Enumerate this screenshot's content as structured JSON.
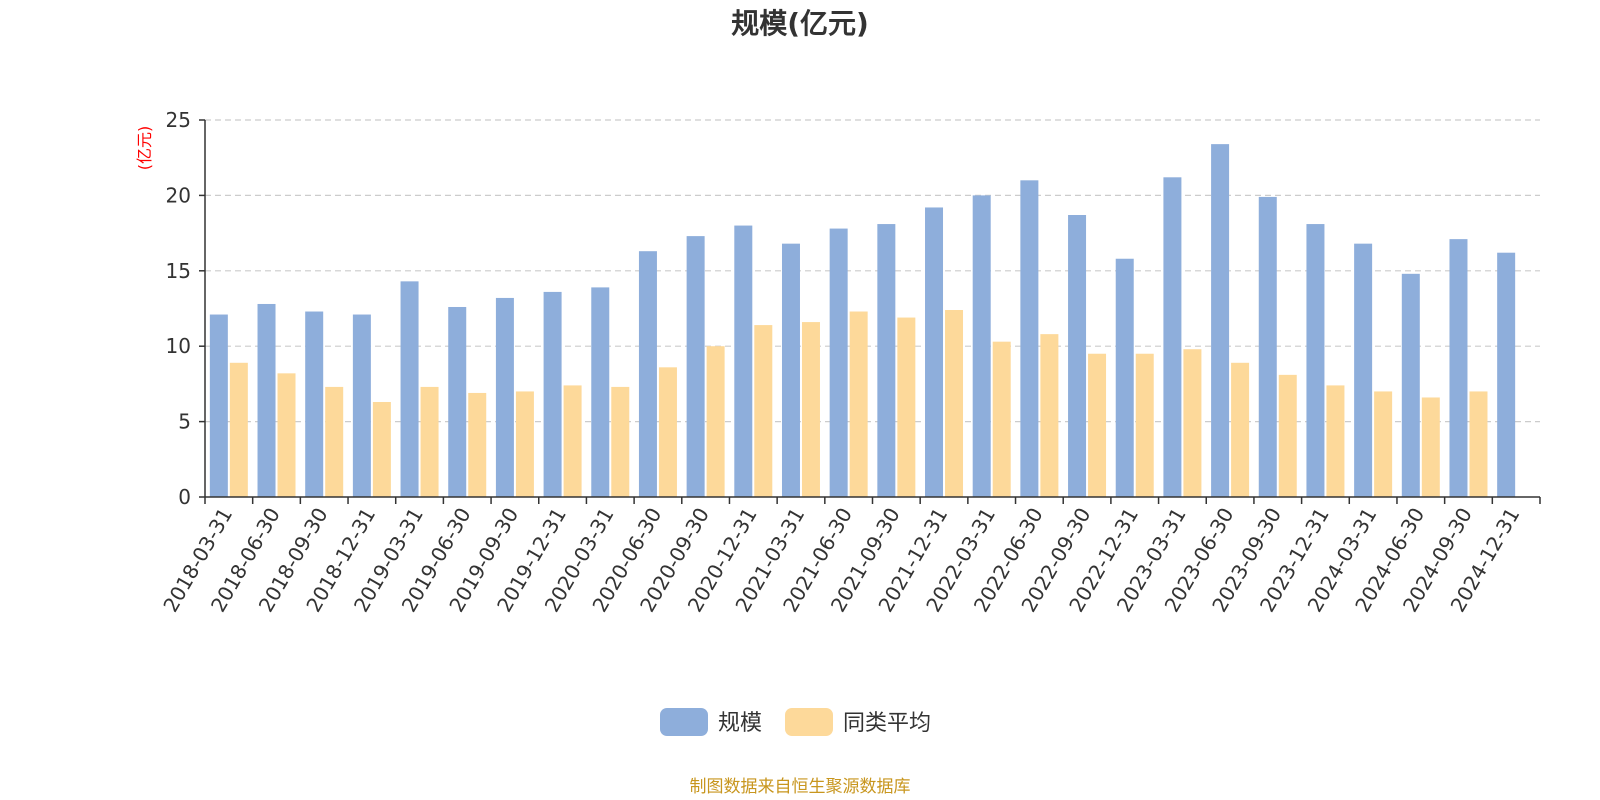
{
  "chart_data": {
    "type": "bar",
    "title": "规模(亿元)",
    "ylabel": "(亿元)",
    "xlabel": "",
    "ylim": [
      0,
      25
    ],
    "yticks": [
      0,
      5,
      10,
      15,
      20,
      25
    ],
    "grid": true,
    "legend_position": "bottom-center",
    "categories": [
      "2018-03-31",
      "2018-06-30",
      "2018-09-30",
      "2018-12-31",
      "2019-03-31",
      "2019-06-30",
      "2019-09-30",
      "2019-12-31",
      "2020-03-31",
      "2020-06-30",
      "2020-09-30",
      "2020-12-31",
      "2021-03-31",
      "2021-06-30",
      "2021-09-30",
      "2021-12-31",
      "2022-03-31",
      "2022-06-30",
      "2022-09-30",
      "2022-12-31",
      "2023-03-31",
      "2023-06-30",
      "2023-09-30",
      "2023-12-31",
      "2024-03-31",
      "2024-06-30",
      "2024-09-30",
      "2024-12-31"
    ],
    "series": [
      {
        "name": "规模",
        "color": "#8eaedb",
        "values": [
          12.1,
          12.8,
          12.3,
          12.1,
          14.3,
          12.6,
          13.2,
          13.6,
          13.9,
          16.3,
          17.3,
          18.0,
          16.8,
          17.8,
          18.1,
          19.2,
          20.0,
          21.0,
          18.7,
          15.8,
          21.2,
          23.4,
          19.9,
          18.1,
          16.8,
          14.8,
          17.1,
          16.2
        ]
      },
      {
        "name": "同类平均",
        "color": "#fdd99a",
        "values": [
          8.9,
          8.2,
          7.3,
          6.3,
          7.3,
          6.9,
          7.0,
          7.4,
          7.3,
          8.6,
          10.0,
          11.4,
          11.6,
          12.3,
          11.9,
          12.4,
          10.3,
          10.8,
          9.5,
          9.5,
          9.8,
          8.9,
          8.1,
          7.4,
          7.0,
          6.6,
          7.0,
          null
        ]
      }
    ]
  },
  "source_note": "制图数据来自恒生聚源数据库"
}
